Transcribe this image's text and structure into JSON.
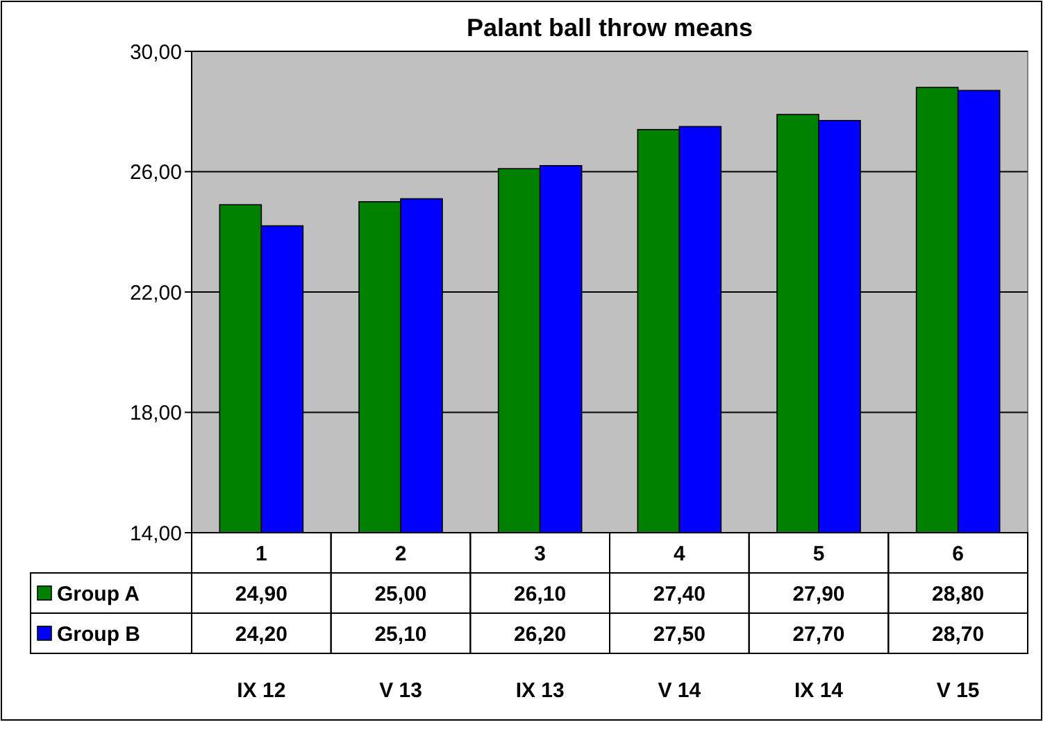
{
  "chart_data": {
    "type": "bar",
    "title": "Palant ball throw means",
    "categories": [
      "1",
      "2",
      "3",
      "4",
      "5",
      "6"
    ],
    "series": [
      {
        "name": "Group A",
        "color": "#008000",
        "values": [
          24.9,
          25.0,
          26.1,
          27.4,
          27.9,
          28.8
        ],
        "value_labels": [
          "24,90",
          "25,00",
          "26,10",
          "27,40",
          "27,90",
          "28,80"
        ]
      },
      {
        "name": "Group B",
        "color": "#0000ff",
        "values": [
          24.2,
          25.1,
          26.2,
          27.5,
          27.7,
          28.7
        ],
        "value_labels": [
          "24,20",
          "25,10",
          "26,20",
          "27,50",
          "27,70",
          "28,70"
        ]
      }
    ],
    "ylim": [
      14,
      30
    ],
    "yticks": [
      {
        "value": 14,
        "label": "14,00"
      },
      {
        "value": 18,
        "label": "18,00"
      },
      {
        "value": 22,
        "label": "22,00"
      },
      {
        "value": 26,
        "label": "26,00"
      },
      {
        "value": 30,
        "label": "30,00"
      }
    ],
    "grid": "y",
    "legend": "bottom left",
    "annotations": [
      "IX 12",
      "V 13",
      "IX 13",
      "V 14",
      "IX 14",
      "V 15"
    ]
  }
}
